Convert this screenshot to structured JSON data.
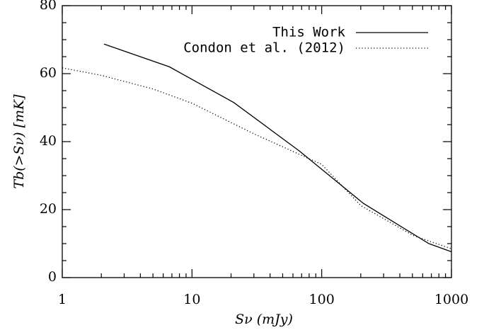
{
  "chart_data": {
    "type": "line",
    "xlabel": "Sν (mJy)",
    "ylabel": "Tb(>Sν) [mK]",
    "xlog": true,
    "xlim": [
      1,
      1000
    ],
    "xticks": [
      1,
      10,
      100,
      1000
    ],
    "xminorticks": [
      2,
      3,
      4,
      5,
      6,
      7,
      8,
      9,
      20,
      30,
      40,
      50,
      60,
      70,
      80,
      90,
      200,
      300,
      400,
      500,
      600,
      700,
      800,
      900
    ],
    "ylim": [
      0,
      80
    ],
    "yticks": [
      0,
      20,
      40,
      60,
      80
    ],
    "yminorticks": [
      5,
      10,
      15,
      25,
      30,
      35,
      45,
      50,
      55,
      65,
      70,
      75
    ],
    "legend": "upper right",
    "series": [
      {
        "name": "This Work",
        "color": "#000000",
        "dash": "solid",
        "x": [
          2.1,
          6.7,
          21,
          67,
          210,
          670,
          1000
        ],
        "values": [
          68.7,
          62,
          51.5,
          37.3,
          21.8,
          10,
          7.6
        ]
      },
      {
        "name": "Condon et al. (2012)",
        "color": "#000000",
        "dash": "dotted",
        "x": [
          1,
          2,
          5,
          10,
          30,
          100,
          200,
          500,
          700,
          1000
        ],
        "values": [
          61.7,
          59.5,
          55.5,
          51.3,
          42.3,
          33.3,
          21.2,
          12.5,
          10.5,
          8.5
        ]
      }
    ]
  }
}
